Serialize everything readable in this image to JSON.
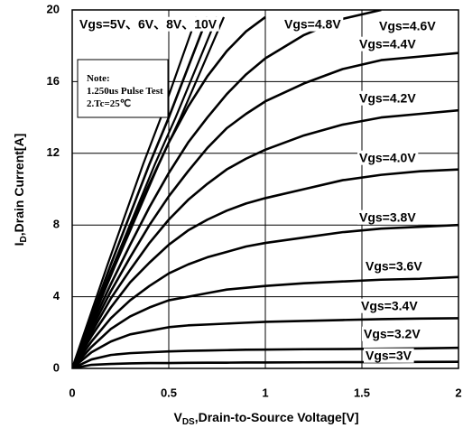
{
  "chart_data": {
    "type": "line",
    "xlabel_parts": [
      "V",
      "DS",
      ",Drain-to-Source Voltage[V]"
    ],
    "ylabel_parts": [
      "I",
      "D",
      ",Drain Current[A]"
    ],
    "note": [
      "Note:",
      "1.250us Pulse Test",
      "2.Tc=25℃"
    ],
    "x": [
      0,
      0.1,
      0.2,
      0.3,
      0.4,
      0.5,
      0.6,
      0.7,
      0.8,
      0.9,
      1.0,
      1.2,
      1.4,
      1.6,
      1.8,
      2.0
    ],
    "xlim": [
      0,
      2
    ],
    "xticks": [
      0,
      0.5,
      1,
      1.5,
      2
    ],
    "ylim": [
      0,
      20
    ],
    "yticks": [
      0,
      4,
      8,
      12,
      16,
      20
    ],
    "grid": true,
    "series": [
      {
        "name": "Vgs=5V、6V、8V、10V",
        "color": "#000000",
        "values": [
          0,
          2.9,
          5.8,
          8.6,
          11.4,
          14.0,
          16.8,
          19.6,
          null,
          null,
          null,
          null,
          null,
          null,
          null,
          null
        ]
      },
      {
        "name": "Vgs=4.8V",
        "color": "#000000",
        "values": [
          0,
          2.7,
          5.4,
          7.9,
          10.3,
          12.6,
          14.6,
          16.3,
          17.7,
          18.8,
          19.6,
          null,
          null,
          null,
          null,
          null
        ]
      },
      {
        "name": "Vgs=4.6V",
        "color": "#000000",
        "values": [
          0,
          2.4,
          4.7,
          6.9,
          9.0,
          10.9,
          12.6,
          14.0,
          15.3,
          16.4,
          17.3,
          18.6,
          19.5,
          20.0,
          null,
          null
        ]
      },
      {
        "name": "Vgs=4.4V",
        "color": "#000000",
        "values": [
          0,
          2.2,
          4.3,
          6.2,
          8.0,
          9.6,
          11.0,
          12.3,
          13.4,
          14.2,
          14.9,
          15.9,
          16.7,
          17.2,
          17.4,
          17.6
        ]
      },
      {
        "name": "Vgs=4.2V",
        "color": "#000000",
        "values": [
          0,
          2.0,
          3.9,
          5.5,
          7.0,
          8.3,
          9.4,
          10.3,
          11.1,
          11.7,
          12.2,
          13.0,
          13.6,
          14.0,
          14.2,
          14.4
        ]
      },
      {
        "name": "Vgs=4.0V",
        "color": "#000000",
        "values": [
          0,
          1.8,
          3.4,
          4.8,
          5.9,
          6.9,
          7.7,
          8.3,
          8.8,
          9.2,
          9.5,
          10.0,
          10.5,
          10.8,
          11.0,
          11.1
        ]
      },
      {
        "name": "Vgs=3.8V",
        "color": "#000000",
        "values": [
          0,
          1.5,
          2.8,
          3.8,
          4.6,
          5.3,
          5.8,
          6.2,
          6.5,
          6.8,
          7.0,
          7.3,
          7.6,
          7.8,
          7.9,
          8.0
        ]
      },
      {
        "name": "Vgs=3.6V",
        "color": "#000000",
        "values": [
          0,
          1.2,
          2.2,
          2.9,
          3.4,
          3.8,
          4.0,
          4.2,
          4.4,
          4.5,
          4.6,
          4.75,
          4.85,
          4.95,
          5.0,
          5.1
        ]
      },
      {
        "name": "Vgs=3.4V",
        "color": "#000000",
        "values": [
          0,
          0.9,
          1.5,
          1.9,
          2.1,
          2.3,
          2.4,
          2.45,
          2.5,
          2.55,
          2.6,
          2.65,
          2.7,
          2.75,
          2.78,
          2.8
        ]
      },
      {
        "name": "Vgs=3.2V",
        "color": "#000000",
        "values": [
          0,
          0.5,
          0.75,
          0.85,
          0.9,
          0.95,
          0.98,
          1.0,
          1.02,
          1.04,
          1.05,
          1.07,
          1.08,
          1.1,
          1.12,
          1.15
        ]
      },
      {
        "name": "Vgs=3V",
        "color": "#000000",
        "values": [
          0,
          0.2,
          0.25,
          0.28,
          0.3,
          0.3,
          0.31,
          0.32,
          0.32,
          0.33,
          0.33,
          0.34,
          0.35,
          0.35,
          0.36,
          0.37
        ]
      }
    ]
  }
}
